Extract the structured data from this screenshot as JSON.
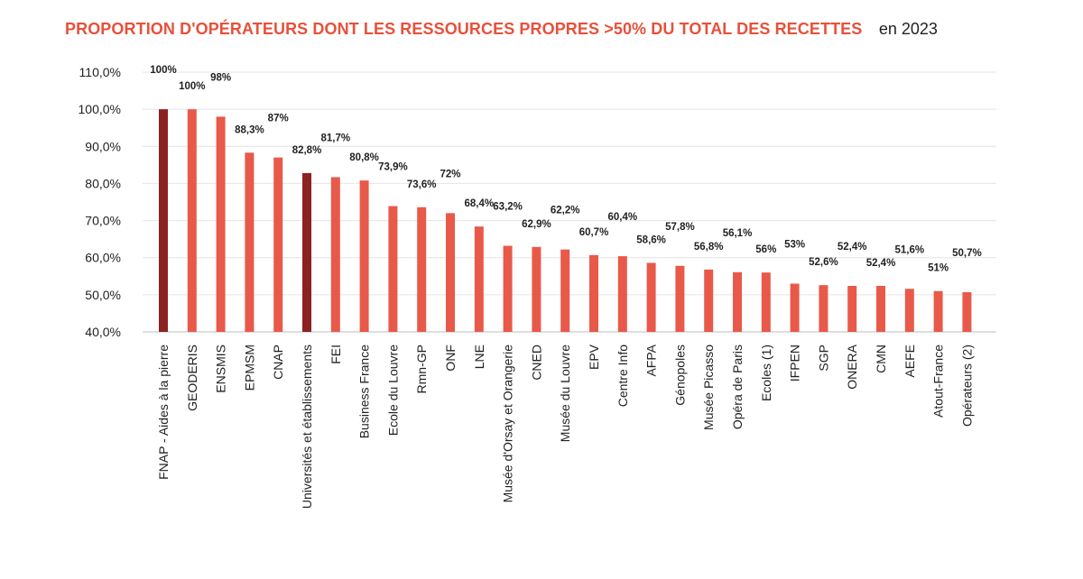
{
  "chart_data": {
    "type": "bar",
    "title": "PROPORTION D'OPÉRATEURS DONT LES RESSOURCES PROPRES >50% DU TOTAL DES RECETTES",
    "subtitle": "en 2023",
    "xlabel": "",
    "ylabel": "",
    "ylim": [
      40,
      110
    ],
    "yticks": [
      "110,0%",
      "100,0%",
      "90,0%",
      "80,0%",
      "70,0%",
      "60,0%",
      "50,0%",
      "40,0%"
    ],
    "ytick_values": [
      110,
      100,
      90,
      80,
      70,
      60,
      50,
      40
    ],
    "grid": true,
    "colors": {
      "default": "#e8594a",
      "highlight": "#8b2220"
    },
    "categories": [
      "FNAP - Aides à la pierre",
      "GEODERIS",
      "ENSMIS",
      "EPMSM",
      "CNAP",
      "Universités et établissements",
      "FEI",
      "Business France",
      "Ecole du Louvre",
      "Rmn-GP",
      "ONF",
      "LNE",
      "Musée d'Orsay et Orangerie",
      "CNED",
      "Musée du Louvre",
      "EPV",
      "Centre Info",
      "AFPA",
      "Génopoles",
      "Musée Picasso",
      "Opéra de Paris",
      "Ecoles (1)",
      "IFPEN",
      "SGP",
      "ONERA",
      "CMN",
      "AEFE",
      "Atout-France",
      "Opérateurs (2)"
    ],
    "values": [
      100,
      100,
      98,
      88.3,
      87,
      82.8,
      81.7,
      80.8,
      73.9,
      73.6,
      72,
      68.4,
      63.2,
      62.9,
      62.2,
      60.7,
      60.4,
      58.6,
      57.8,
      56.8,
      56.1,
      56,
      53,
      52.6,
      52.4,
      52.4,
      51.6,
      51,
      50.7
    ],
    "labels": [
      "100%",
      "100%",
      "98%",
      "88,3%",
      "87%",
      "82,8%",
      "81,7%",
      "80,8%",
      "73,9%",
      "73,6%",
      "72%",
      "68,4%",
      "63,2%",
      "62,9%",
      "62,2%",
      "60,7%",
      "60,4%",
      "58,6%",
      "57,8%",
      "56,8%",
      "56,1%",
      "56%",
      "53%",
      "52,6%",
      "52,4%",
      "52,4%",
      "51,6%",
      "51%",
      "50,7%"
    ],
    "highlighted": [
      true,
      false,
      false,
      false,
      false,
      true,
      false,
      false,
      false,
      false,
      false,
      false,
      false,
      false,
      false,
      false,
      false,
      false,
      false,
      false,
      false,
      false,
      false,
      false,
      false,
      false,
      false,
      false,
      false
    ]
  }
}
